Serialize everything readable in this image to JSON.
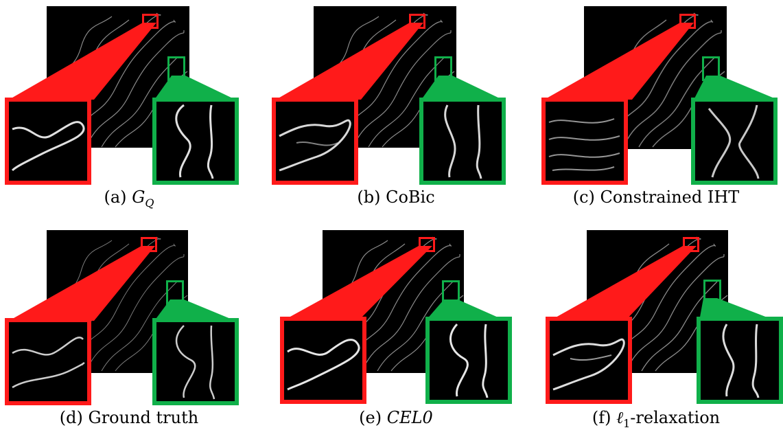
{
  "panels": [
    {
      "label": "(a)",
      "name": "G",
      "sub": "Q",
      "suffix": "",
      "math": true
    },
    {
      "label": "(b)",
      "name": "CoBic",
      "sub": "",
      "suffix": "",
      "math": false
    },
    {
      "label": "(c)",
      "name": "Constrained IHT",
      "sub": "",
      "suffix": "",
      "math": false
    },
    {
      "label": "(d)",
      "name": "Ground truth",
      "sub": "",
      "suffix": "",
      "math": false
    },
    {
      "label": "(e)",
      "name": "CEL0",
      "sub": "",
      "suffix": "",
      "math": true
    },
    {
      "label": "(f)",
      "name": "ℓ",
      "sub": "1",
      "suffix": "-relaxation",
      "math": true
    }
  ],
  "colors": {
    "red": "#ff1a1a",
    "green": "#10b04a",
    "background": "#000000"
  }
}
